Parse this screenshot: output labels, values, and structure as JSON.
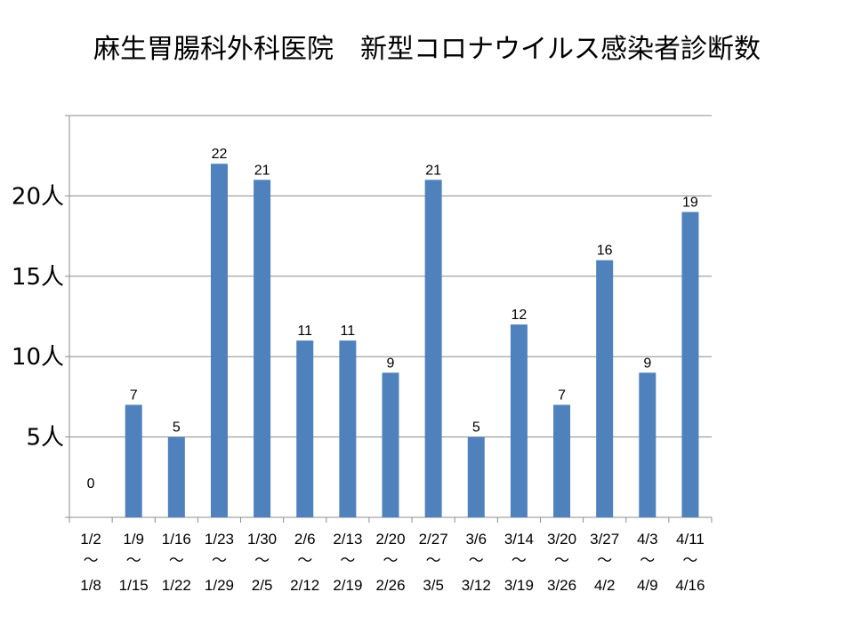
{
  "chart_data": {
    "type": "bar",
    "title": "麻生胃腸科外科医院　新型コロナウイルス感染者診断数",
    "categories": [
      {
        "start": "1/2",
        "end": "1/8"
      },
      {
        "start": "1/9",
        "end": "1/15"
      },
      {
        "start": "1/16",
        "end": "1/22"
      },
      {
        "start": "1/23",
        "end": "1/29"
      },
      {
        "start": "1/30",
        "end": "2/5"
      },
      {
        "start": "2/6",
        "end": "2/12"
      },
      {
        "start": "2/13",
        "end": "2/19"
      },
      {
        "start": "2/20",
        "end": "2/26"
      },
      {
        "start": "2/27",
        "end": "3/5"
      },
      {
        "start": "3/6",
        "end": "3/12"
      },
      {
        "start": "3/14",
        "end": "3/19"
      },
      {
        "start": "3/20",
        "end": "3/26"
      },
      {
        "start": "3/27",
        "end": "4/2"
      },
      {
        "start": "4/3",
        "end": "4/9"
      },
      {
        "start": "4/11",
        "end": "4/16"
      }
    ],
    "range_separator": "～",
    "values": [
      0,
      7,
      5,
      22,
      21,
      11,
      11,
      9,
      21,
      5,
      12,
      7,
      16,
      9,
      19
    ],
    "series_color": "#4f81bd",
    "ylim": [
      0,
      25
    ],
    "yticks": [
      {
        "value": 5,
        "label": "5人"
      },
      {
        "value": 10,
        "label": "10人"
      },
      {
        "value": 15,
        "label": "15人"
      },
      {
        "value": 20,
        "label": "20人"
      }
    ],
    "gridlines": [
      5,
      10,
      15,
      20,
      25
    ],
    "grid": true,
    "legend": false,
    "data_labels": true
  }
}
